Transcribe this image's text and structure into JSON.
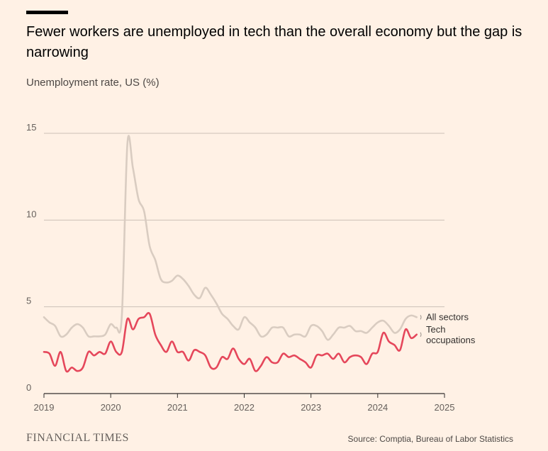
{
  "header": {
    "title": "Fewer workers are unemployed in tech than the overall economy but the gap is narrowing",
    "subtitle": "Unemployment rate, US (%)"
  },
  "footer": {
    "brand": "FINANCIAL TIMES",
    "source": "Source: Comptia, Bureau of Labor Statistics"
  },
  "colors": {
    "background": "#fff1e5",
    "all_sectors": "#d9ccc1",
    "tech": "#e5475b",
    "grid": "#ccc1b7",
    "axis": "#33302e"
  },
  "chart_data": {
    "type": "line",
    "title": "Fewer workers are unemployed in tech than the overall economy but the gap is narrowing",
    "ylabel": "Unemployment rate, US (%)",
    "xlabel": "",
    "xlim": [
      2019,
      2025
    ],
    "ylim": [
      0,
      15
    ],
    "x_ticks": [
      "2019",
      "2020",
      "2021",
      "2022",
      "2023",
      "2024",
      "2025"
    ],
    "y_ticks": [
      "0",
      "5",
      "10",
      "15"
    ],
    "grid": true,
    "series": [
      {
        "name": "All sectors",
        "label_lines": [
          "All sectors"
        ],
        "x": [
          2019.0,
          2019.083,
          2019.167,
          2019.25,
          2019.333,
          2019.417,
          2019.5,
          2019.583,
          2019.667,
          2019.75,
          2019.833,
          2019.917,
          2020.0,
          2020.083,
          2020.167,
          2020.25,
          2020.333,
          2020.417,
          2020.5,
          2020.583,
          2020.667,
          2020.75,
          2020.833,
          2020.917,
          2021.0,
          2021.083,
          2021.167,
          2021.25,
          2021.333,
          2021.417,
          2021.5,
          2021.583,
          2021.667,
          2021.75,
          2021.833,
          2021.917,
          2022.0,
          2022.083,
          2022.167,
          2022.25,
          2022.333,
          2022.417,
          2022.5,
          2022.583,
          2022.667,
          2022.75,
          2022.833,
          2022.917,
          2023.0,
          2023.083,
          2023.167,
          2023.25,
          2023.333,
          2023.417,
          2023.5,
          2023.583,
          2023.667,
          2023.75,
          2023.833,
          2023.917,
          2024.0,
          2024.083,
          2024.167,
          2024.25,
          2024.333,
          2024.417,
          2024.5,
          2024.583
        ],
        "values": [
          4.4,
          4.1,
          3.9,
          3.3,
          3.4,
          3.8,
          4.0,
          3.8,
          3.3,
          3.3,
          3.3,
          3.4,
          4.0,
          3.8,
          4.5,
          14.4,
          13.0,
          11.2,
          10.5,
          8.5,
          7.7,
          6.6,
          6.4,
          6.5,
          6.8,
          6.6,
          6.2,
          5.7,
          5.5,
          6.1,
          5.7,
          5.2,
          4.6,
          4.3,
          3.9,
          3.7,
          4.4,
          4.1,
          3.8,
          3.3,
          3.4,
          3.8,
          3.8,
          3.8,
          3.3,
          3.4,
          3.4,
          3.3,
          3.9,
          3.9,
          3.6,
          3.1,
          3.4,
          3.8,
          3.8,
          3.9,
          3.6,
          3.6,
          3.5,
          3.8,
          4.1,
          4.2,
          3.9,
          3.5,
          3.7,
          4.3,
          4.5,
          4.4
        ]
      },
      {
        "name": "Tech occupations",
        "label_lines": [
          "Tech",
          "occupations"
        ],
        "x": [
          2019.0,
          2019.083,
          2019.167,
          2019.25,
          2019.333,
          2019.417,
          2019.5,
          2019.583,
          2019.667,
          2019.75,
          2019.833,
          2019.917,
          2020.0,
          2020.083,
          2020.167,
          2020.25,
          2020.333,
          2020.417,
          2020.5,
          2020.583,
          2020.667,
          2020.75,
          2020.833,
          2020.917,
          2021.0,
          2021.083,
          2021.167,
          2021.25,
          2021.333,
          2021.417,
          2021.5,
          2021.583,
          2021.667,
          2021.75,
          2021.833,
          2021.917,
          2022.0,
          2022.083,
          2022.167,
          2022.25,
          2022.333,
          2022.417,
          2022.5,
          2022.583,
          2022.667,
          2022.75,
          2022.833,
          2022.917,
          2023.0,
          2023.083,
          2023.167,
          2023.25,
          2023.333,
          2023.417,
          2023.5,
          2023.583,
          2023.667,
          2023.75,
          2023.833,
          2023.917,
          2024.0,
          2024.083,
          2024.167,
          2024.25,
          2024.333,
          2024.417,
          2024.5,
          2024.583
        ],
        "values": [
          2.4,
          2.3,
          1.6,
          2.4,
          1.3,
          1.5,
          1.3,
          1.5,
          2.4,
          2.2,
          2.4,
          2.3,
          3.0,
          2.4,
          2.4,
          4.3,
          3.7,
          4.3,
          4.4,
          4.6,
          3.4,
          2.8,
          2.4,
          3.0,
          2.4,
          2.4,
          1.9,
          2.5,
          2.4,
          2.2,
          1.5,
          1.5,
          2.1,
          2.0,
          2.6,
          2.0,
          1.7,
          2.0,
          1.3,
          1.6,
          2.1,
          1.8,
          1.8,
          2.3,
          2.1,
          2.2,
          2.0,
          1.8,
          1.5,
          2.2,
          2.2,
          2.3,
          2.0,
          2.3,
          1.8,
          2.1,
          2.2,
          2.1,
          1.7,
          2.3,
          2.4,
          3.5,
          3.0,
          2.8,
          2.5,
          3.7,
          3.2,
          3.4
        ]
      }
    ]
  }
}
